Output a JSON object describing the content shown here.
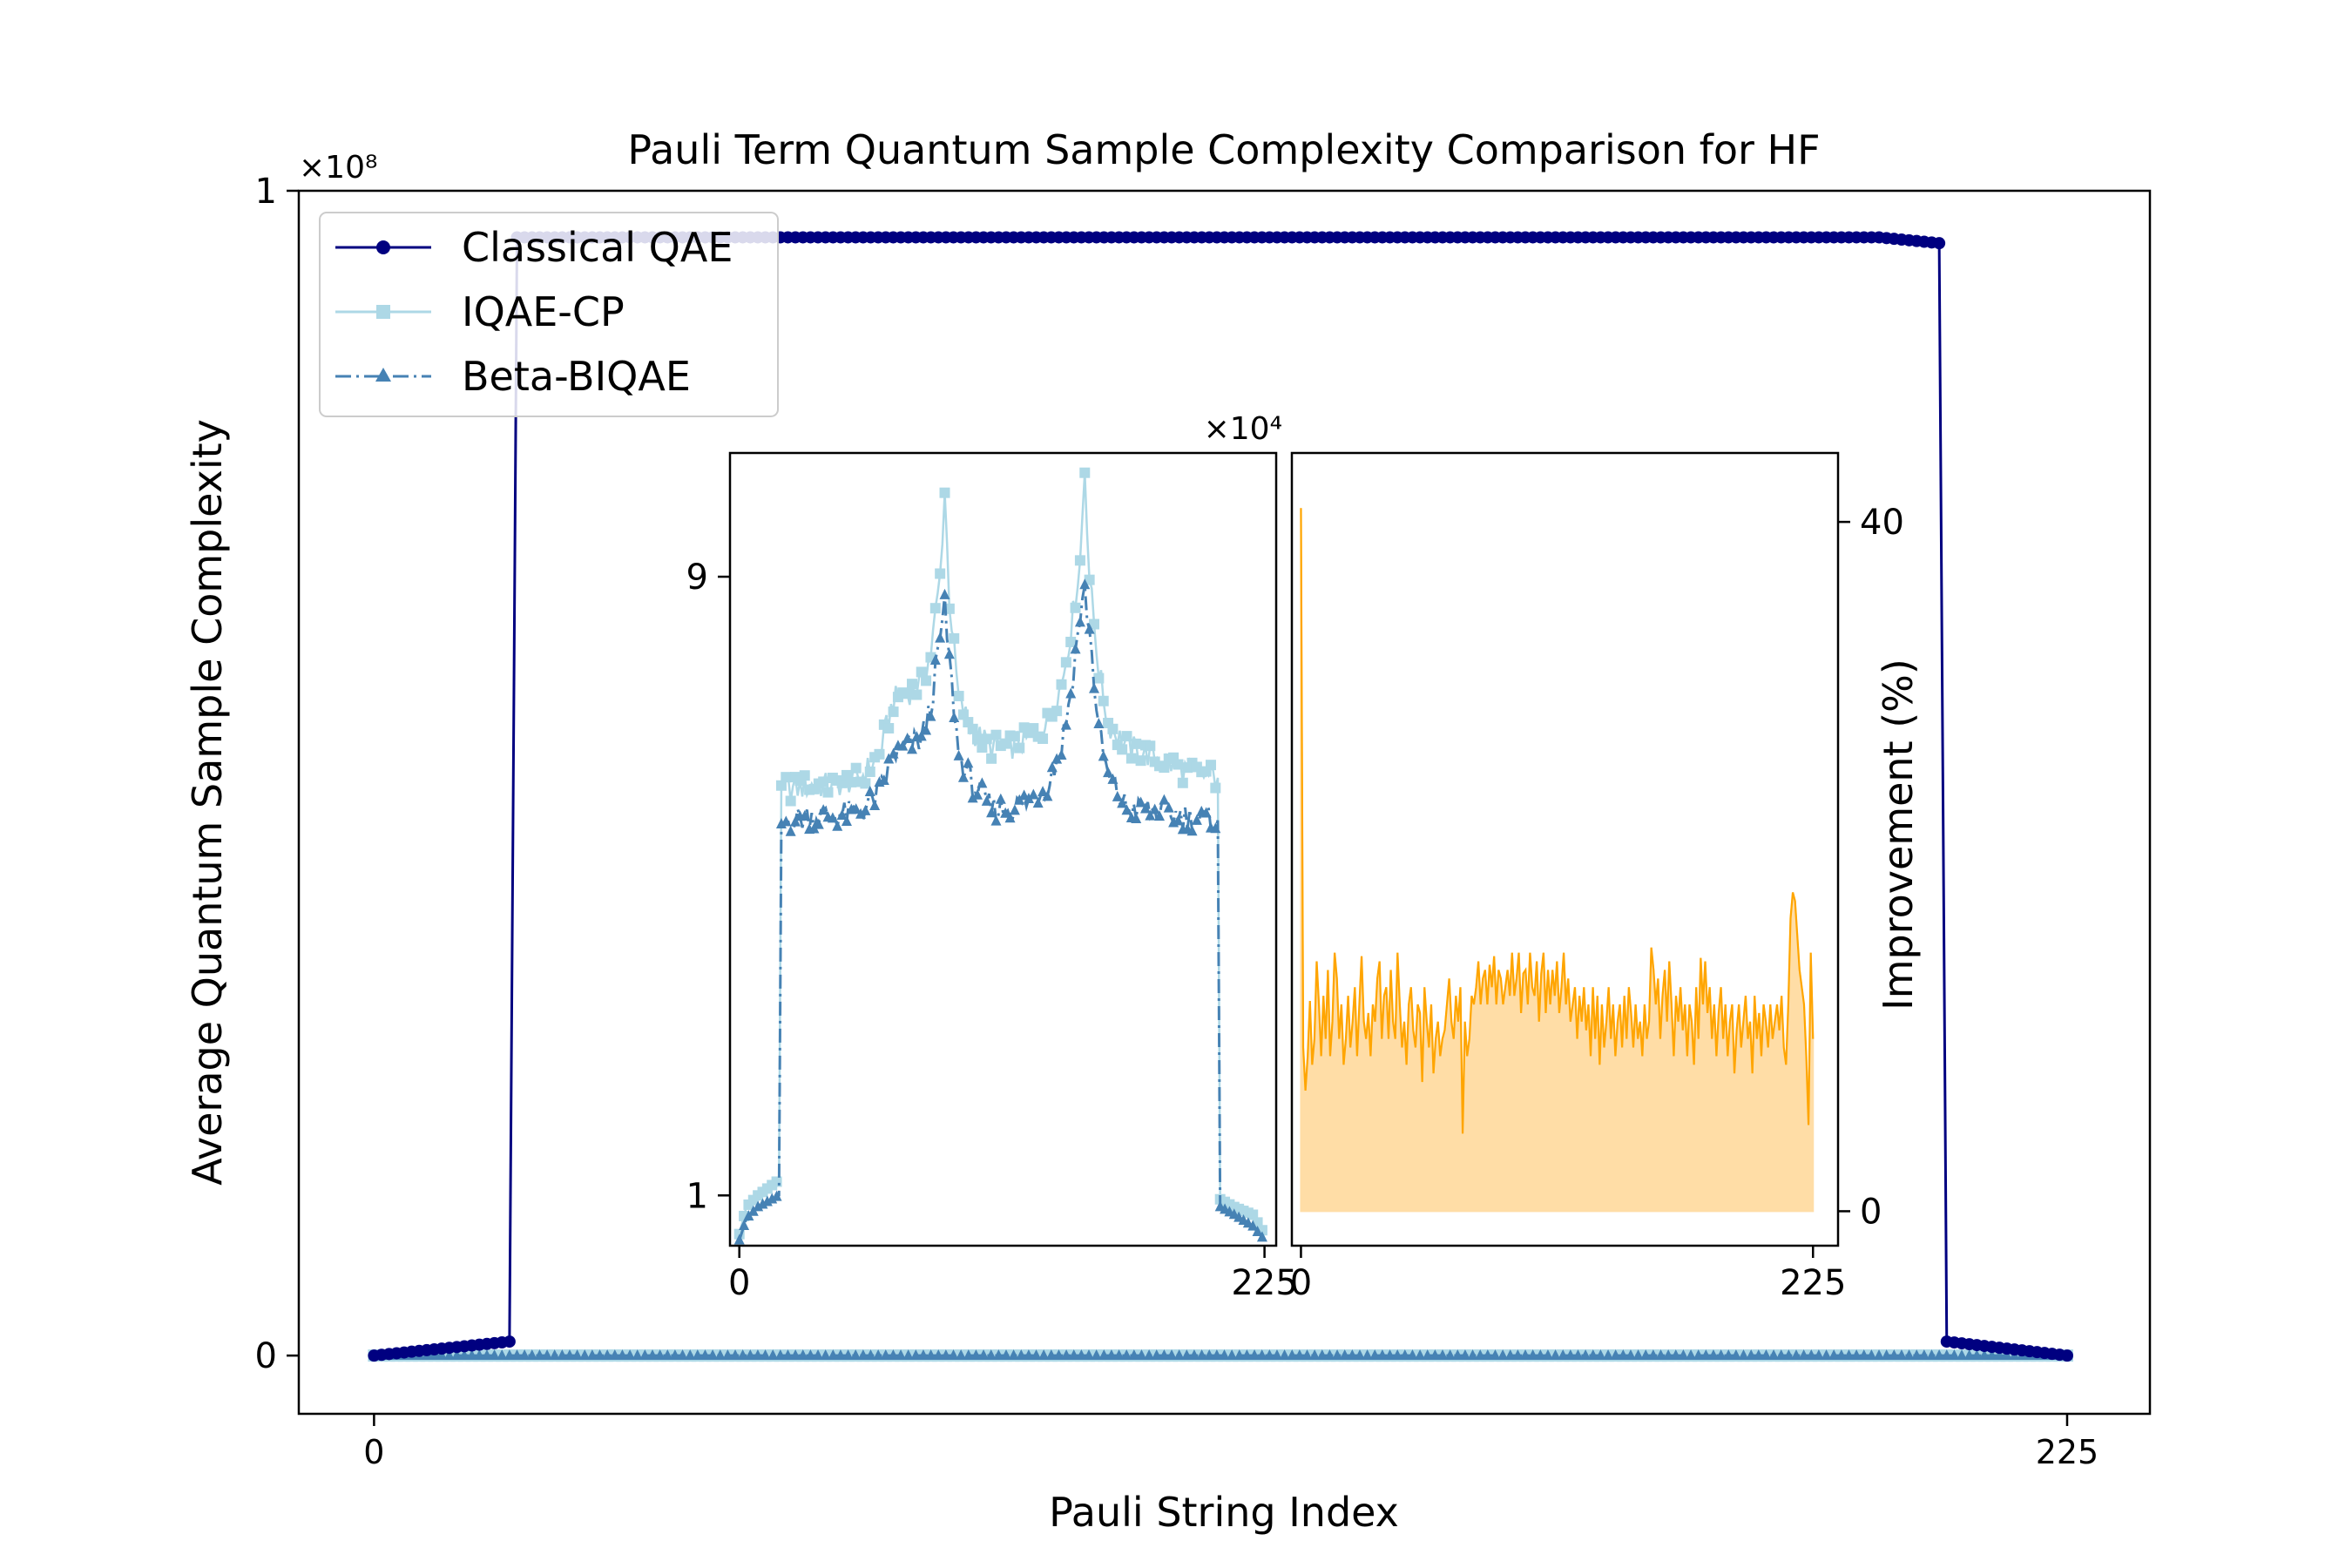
{
  "chart_data": [
    {
      "type": "line",
      "title": "Pauli Term Quantum Sample Complexity Comparison for HF",
      "xlabel": "Pauli String Index",
      "ylabel": "Average Quantum Sample Complexity",
      "y_multiplier": "×10⁸",
      "xlim": [
        -10,
        236
      ],
      "ylim": [
        -0.05,
        1.0
      ],
      "yscale_factor": 100000000,
      "x_ticks": [
        0,
        225
      ],
      "y_ticks": [
        0,
        1
      ],
      "legend_position": "upper-left",
      "series": [
        {
          "name": "Classical QAE",
          "color": "#000080",
          "marker": "circle",
          "line_style": "solid",
          "segments": [
            {
              "x": [
                0,
                18
              ],
              "y": [
                0.0,
                0.012
              ]
            },
            {
              "x": [
                19,
                208
              ],
              "y": [
                0.96,
                0.96
              ]
            },
            {
              "x": [
                202,
                208
              ],
              "y": [
                0.96,
                0.955
              ]
            },
            {
              "x": [
                209,
                225
              ],
              "y": [
                0.012,
                0.0
              ]
            }
          ]
        },
        {
          "name": "IQAE-CP",
          "color": "#add8e6",
          "marker": "square",
          "line_style": "solid",
          "segments": [
            {
              "x": [
                0,
                225
              ],
              "y": [
                0.0,
                0.0
              ]
            }
          ]
        },
        {
          "name": "Beta-BIQAE",
          "color": "#4682b4",
          "marker": "triangle",
          "line_style": "dashdot",
          "segments": [
            {
              "x": [
                0,
                225
              ],
              "y": [
                0.0,
                0.0
              ]
            }
          ]
        }
      ]
    },
    {
      "type": "line",
      "panel": "inset-left",
      "y_multiplier": "×10⁴",
      "xlim": [
        -4,
        230
      ],
      "ylim": [
        0.35,
        10.6
      ],
      "x_ticks": [
        0,
        225
      ],
      "y_ticks": [
        1,
        9
      ],
      "series": [
        {
          "name": "IQAE-CP",
          "color": "#add8e6",
          "marker": "square",
          "profile": [
            [
              0,
              0.5
            ],
            [
              3,
              0.85
            ],
            [
              8,
              1.0
            ],
            [
              17,
              1.2
            ],
            [
              18,
              6.3
            ],
            [
              23,
              6.25
            ],
            [
              30,
              6.3
            ],
            [
              40,
              6.3
            ],
            [
              52,
              6.4
            ],
            [
              60,
              6.7
            ],
            [
              66,
              7.4
            ],
            [
              72,
              7.5
            ],
            [
              78,
              7.6
            ],
            [
              82,
              8.0
            ],
            [
              86,
              9.0
            ],
            [
              88,
              10.1
            ],
            [
              90,
              8.7
            ],
            [
              94,
              7.4
            ],
            [
              100,
              7.0
            ],
            [
              108,
              6.8
            ],
            [
              116,
              6.8
            ],
            [
              124,
              6.9
            ],
            [
              132,
              7.1
            ],
            [
              138,
              7.6
            ],
            [
              142,
              8.3
            ],
            [
              146,
              9.2
            ],
            [
              148,
              10.4
            ],
            [
              150,
              9.0
            ],
            [
              154,
              7.8
            ],
            [
              158,
              7.1
            ],
            [
              166,
              6.8
            ],
            [
              180,
              6.65
            ],
            [
              190,
              6.5
            ],
            [
              198,
              6.45
            ],
            [
              205,
              6.4
            ],
            [
              206,
              0.95
            ],
            [
              212,
              0.85
            ],
            [
              220,
              0.75
            ],
            [
              225,
              0.5
            ]
          ]
        },
        {
          "name": "Beta-BIQAE",
          "color": "#4682b4",
          "marker": "triangle",
          "profile": [
            [
              0,
              0.42
            ],
            [
              3,
              0.7
            ],
            [
              8,
              0.85
            ],
            [
              17,
              1.0
            ],
            [
              18,
              5.8
            ],
            [
              23,
              5.85
            ],
            [
              30,
              5.9
            ],
            [
              40,
              5.9
            ],
            [
              52,
              5.95
            ],
            [
              60,
              6.2
            ],
            [
              66,
              6.7
            ],
            [
              72,
              6.8
            ],
            [
              78,
              6.9
            ],
            [
              82,
              7.3
            ],
            [
              86,
              8.2
            ],
            [
              88,
              8.6
            ],
            [
              90,
              7.9
            ],
            [
              94,
              6.7
            ],
            [
              100,
              6.3
            ],
            [
              108,
              6.0
            ],
            [
              116,
              6.0
            ],
            [
              124,
              6.1
            ],
            [
              132,
              6.3
            ],
            [
              138,
              6.8
            ],
            [
              142,
              7.5
            ],
            [
              146,
              8.5
            ],
            [
              148,
              8.8
            ],
            [
              150,
              8.3
            ],
            [
              154,
              7.0
            ],
            [
              158,
              6.4
            ],
            [
              166,
              6.0
            ],
            [
              180,
              5.95
            ],
            [
              190,
              5.9
            ],
            [
              198,
              5.85
            ],
            [
              205,
              5.85
            ],
            [
              206,
              0.85
            ],
            [
              212,
              0.75
            ],
            [
              220,
              0.6
            ],
            [
              225,
              0.42
            ]
          ]
        }
      ]
    },
    {
      "type": "area",
      "panel": "inset-right",
      "ylabel": "Improvement (%)",
      "xlim": [
        -4,
        236
      ],
      "ylim": [
        -2,
        44
      ],
      "x_ticks": [
        0,
        225
      ],
      "y_ticks": [
        0,
        40
      ],
      "series": [
        {
          "name": "Improvement",
          "color": "#ffa500",
          "fill_color": "#ffdda6",
          "values": [
            40.8,
            9.5,
            7.0,
            9.0,
            12.2,
            8.5,
            10.0,
            14.5,
            12.0,
            9.0,
            12.5,
            10.0,
            14.0,
            9.0,
            11.0,
            15.0,
            13.5,
            10.0,
            12.0,
            8.5,
            10.0,
            12.5,
            9.5,
            11.0,
            13.0,
            9.0,
            12.0,
            14.8,
            11.0,
            10.0,
            11.5,
            9.0,
            12.0,
            11.0,
            13.5,
            14.5,
            10.0,
            12.5,
            13.0,
            10.0,
            14.0,
            11.0,
            10.0,
            15.0,
            12.0,
            9.5,
            11.0,
            8.5,
            12.0,
            13.0,
            10.5,
            9.5,
            12.0,
            11.5,
            7.5,
            13.0,
            11.0,
            9.5,
            12.0,
            8.0,
            10.0,
            11.0,
            9.0,
            10.0,
            10.5,
            12.0,
            13.5,
            11.0,
            10.0,
            12.5,
            11.0,
            13.0,
            4.5,
            11.0,
            9.0,
            10.0,
            12.5,
            12.0,
            13.0,
            14.5,
            12.0,
            13.5,
            14.0,
            12.0,
            14.3,
            13.0,
            14.8,
            12.0,
            14.0,
            13.5,
            12.0,
            13.0,
            14.0,
            12.5,
            15.0,
            12.5,
            13.5,
            15.0,
            11.5,
            13.8,
            14.0,
            12.0,
            15.0,
            13.0,
            12.5,
            14.5,
            11.0,
            13.8,
            15.0,
            11.5,
            14.0,
            12.0,
            14.0,
            12.5,
            14.5,
            11.5,
            13.0,
            15.0,
            12.0,
            13.5,
            11.0,
            12.0,
            13.0,
            10.0,
            12.5,
            11.0,
            13.0,
            10.5,
            12.0,
            9.0,
            13.0,
            10.0,
            12.5,
            8.5,
            12.0,
            9.5,
            11.0,
            13.0,
            10.0,
            12.0,
            9.0,
            11.0,
            12.0,
            9.5,
            12.5,
            10.0,
            13.0,
            11.5,
            9.5,
            12.0,
            10.0,
            11.0,
            9.0,
            12.0,
            10.0,
            11.0,
            15.3,
            14.0,
            12.0,
            13.5,
            10.0,
            12.5,
            14.0,
            11.0,
            14.5,
            12.0,
            9.0,
            12.5,
            11.0,
            13.0,
            10.5,
            12.0,
            9.0,
            12.0,
            11.0,
            8.5,
            13.0,
            10.0,
            14.7,
            12.0,
            14.5,
            11.5,
            13.0,
            10.0,
            12.0,
            9.0,
            11.5,
            13.0,
            10.0,
            12.0,
            9.0,
            11.0,
            12.0,
            8.0,
            10.5,
            12.0,
            9.5,
            11.0,
            12.5,
            10.0,
            11.0,
            8.0,
            12.5,
            10.0,
            11.5,
            9.0,
            12.0,
            11.0,
            9.5,
            12.0,
            10.0,
            11.0,
            12.0,
            10.5,
            12.5,
            9.5,
            8.5,
            12.0,
            17.0,
            18.5,
            18.0,
            16.0,
            14.0,
            13.0,
            12.0,
            9.0,
            5.0,
            15.0,
            10.0
          ]
        }
      ]
    }
  ]
}
